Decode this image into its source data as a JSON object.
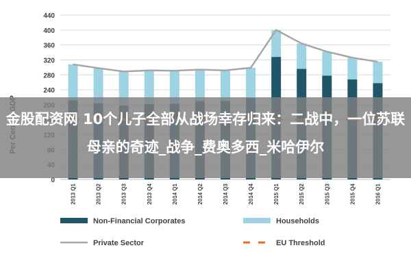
{
  "chart_data": {
    "type": "bar",
    "stacked": true,
    "categories": [
      "2013 Q1",
      "2013 Q2",
      "2013 Q3",
      "2013 Q4",
      "2014 Q1",
      "2014 Q2",
      "2014 Q3",
      "2014 Q4",
      "2015 Q1",
      "2015 Q2",
      "2015 Q3",
      "2015 Q4",
      "2016 Q1"
    ],
    "ylabel": "Per Cent of GDP",
    "ylim": [
      0,
      440
    ],
    "yticks": [
      0,
      40,
      80,
      120,
      160,
      200,
      240,
      280,
      320,
      360,
      400,
      440
    ],
    "grid": true,
    "legend_position": "bottom",
    "series": [
      {
        "name": "Non-Financial Corporates",
        "kind": "bar",
        "color": "#1f5668",
        "values": [
          212,
          204,
          198,
          202,
          203,
          210,
          210,
          218,
          328,
          296,
          278,
          268,
          258
        ]
      },
      {
        "name": "Households",
        "kind": "bar",
        "color": "#9dd3e2",
        "values": [
          96,
          94,
          91,
          90,
          88,
          84,
          82,
          81,
          72,
          68,
          64,
          58,
          57
        ]
      },
      {
        "name": "Private Sector",
        "kind": "line",
        "color": "#a6a6a6",
        "values": [
          308,
          298,
          289,
          292,
          291,
          294,
          292,
          299,
          400,
          364,
          342,
          326,
          315
        ]
      },
      {
        "name": "EU Threshold",
        "kind": "dashed-line",
        "color": "#e46c2a",
        "values": [
          160,
          160,
          160,
          160,
          160,
          160,
          160,
          160,
          160,
          160,
          160,
          160,
          160
        ]
      }
    ]
  },
  "watermark": {
    "text": "金股配资网 10个儿子全部从战场幸存归来：二战中，一位苏联母亲的奇迹_战争_费奥多西_米哈伊尔"
  }
}
